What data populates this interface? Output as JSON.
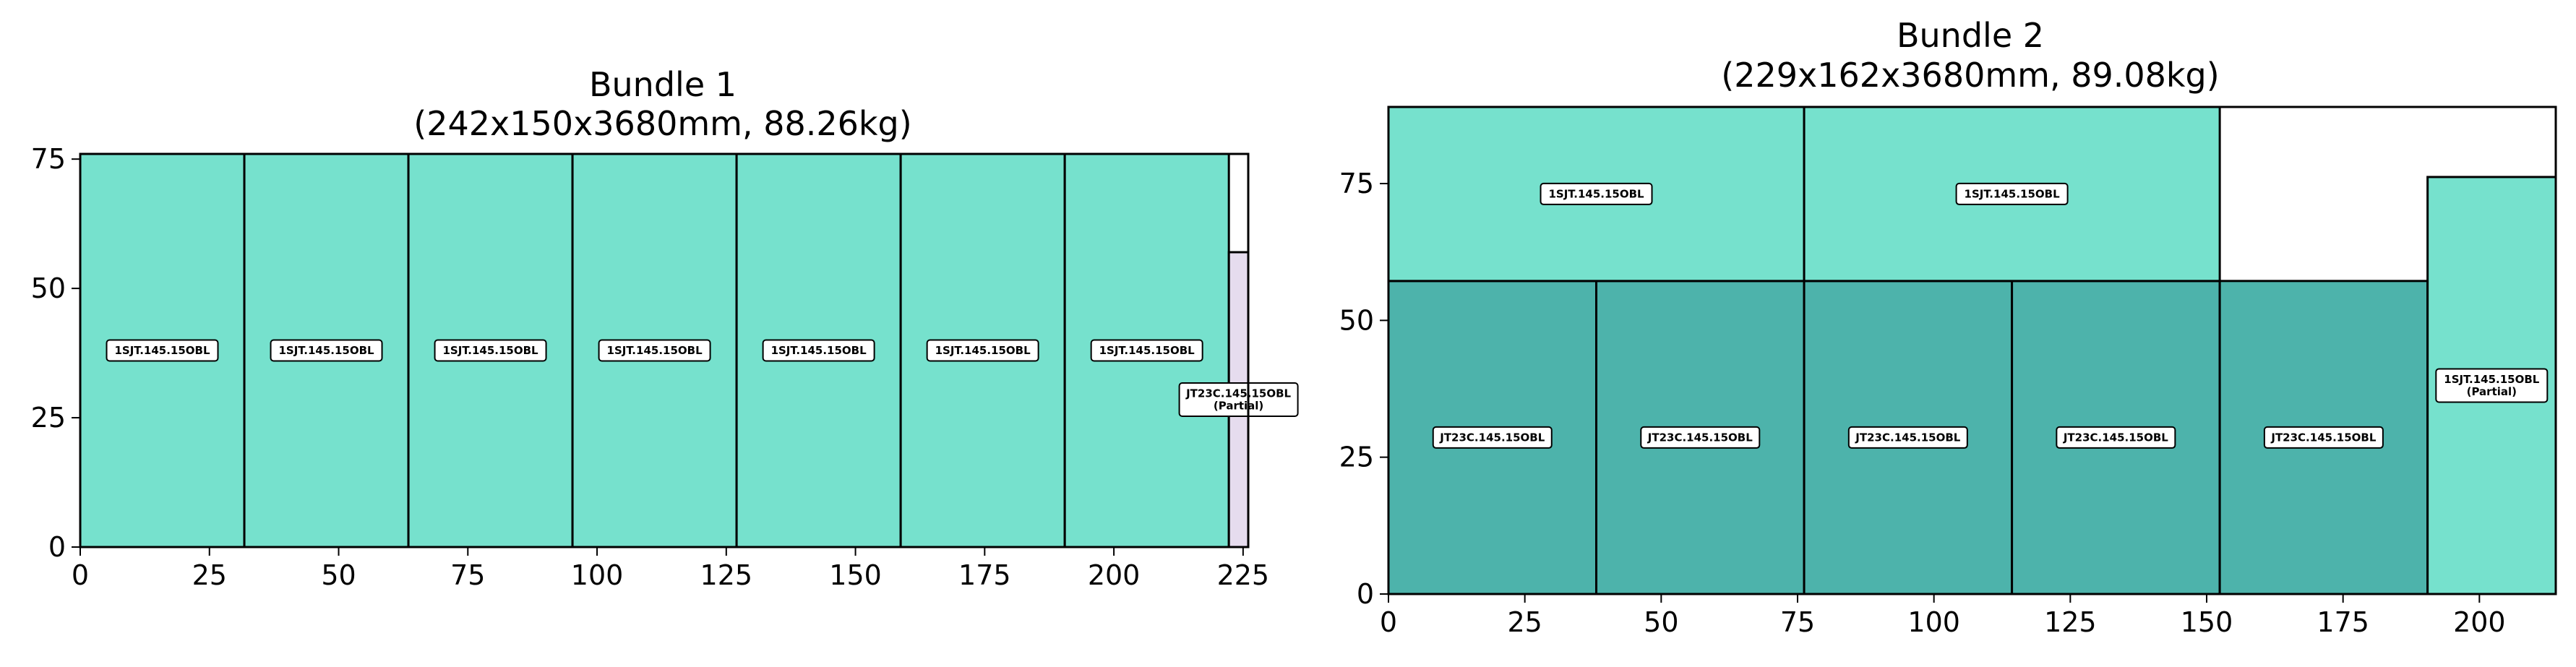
{
  "chart_data": [
    {
      "type": "bar",
      "title": "Bundle 1",
      "subtitle": "(242x150x3680mm, 88.26kg)",
      "xlabel": "",
      "ylabel": "",
      "xlim": [
        0,
        226
      ],
      "ylim": [
        0,
        76
      ],
      "xticks": [
        0,
        25,
        50,
        75,
        100,
        125,
        150,
        175,
        200,
        225
      ],
      "yticks": [
        0,
        25,
        50,
        75
      ],
      "grid": false,
      "outline": {
        "x0": 0,
        "x1": 226,
        "y0": 0,
        "y1": 76
      },
      "rects": [
        {
          "x0": 0,
          "x1": 31.75,
          "y0": 0,
          "y1": 76,
          "label": [
            "1SJT.145.15OBL"
          ],
          "color": "#76e1cd"
        },
        {
          "x0": 31.75,
          "x1": 63.5,
          "y0": 0,
          "y1": 76,
          "label": [
            "1SJT.145.15OBL"
          ],
          "color": "#76e1cd"
        },
        {
          "x0": 63.5,
          "x1": 95.25,
          "y0": 0,
          "y1": 76,
          "label": [
            "1SJT.145.15OBL"
          ],
          "color": "#76e1cd"
        },
        {
          "x0": 95.25,
          "x1": 127,
          "y0": 0,
          "y1": 76,
          "label": [
            "1SJT.145.15OBL"
          ],
          "color": "#76e1cd"
        },
        {
          "x0": 127,
          "x1": 158.75,
          "y0": 0,
          "y1": 76,
          "label": [
            "1SJT.145.15OBL"
          ],
          "color": "#76e1cd"
        },
        {
          "x0": 158.75,
          "x1": 190.5,
          "y0": 0,
          "y1": 76,
          "label": [
            "1SJT.145.15OBL"
          ],
          "color": "#76e1cd"
        },
        {
          "x0": 190.5,
          "x1": 222.25,
          "y0": 0,
          "y1": 76,
          "label": [
            "1SJT.145.15OBL"
          ],
          "color": "#76e1cd"
        },
        {
          "x0": 222.25,
          "x1": 226,
          "y0": 0,
          "y1": 57,
          "label": [
            "JT23C.145.15OBL",
            "(Partial)"
          ],
          "color": "#e6dcee"
        }
      ]
    },
    {
      "type": "bar",
      "title": "Bundle 2",
      "subtitle": "(229x162x3680mm, 89.08kg)",
      "xlabel": "",
      "ylabel": "",
      "xlim": [
        0,
        214
      ],
      "ylim": [
        0,
        89
      ],
      "xticks": [
        0,
        25,
        50,
        75,
        100,
        125,
        150,
        175,
        200
      ],
      "yticks": [
        0,
        25,
        50,
        75
      ],
      "grid": false,
      "outline": {
        "x0": 0,
        "x1": 214,
        "y0": 0,
        "y1": 89
      },
      "rects": [
        {
          "x0": 0,
          "x1": 38.1,
          "y0": 0,
          "y1": 57.2,
          "label": [
            "JT23C.145.15OBL"
          ],
          "color": "#4db3ab"
        },
        {
          "x0": 38.1,
          "x1": 76.2,
          "y0": 0,
          "y1": 57.2,
          "label": [
            "JT23C.145.15OBL"
          ],
          "color": "#4db3ab"
        },
        {
          "x0": 76.2,
          "x1": 114.3,
          "y0": 0,
          "y1": 57.2,
          "label": [
            "JT23C.145.15OBL"
          ],
          "color": "#4db3ab"
        },
        {
          "x0": 114.3,
          "x1": 152.4,
          "y0": 0,
          "y1": 57.2,
          "label": [
            "JT23C.145.15OBL"
          ],
          "color": "#4db3ab"
        },
        {
          "x0": 152.4,
          "x1": 190.5,
          "y0": 0,
          "y1": 57.2,
          "label": [
            "JT23C.145.15OBL"
          ],
          "color": "#4db3ab"
        },
        {
          "x0": 0,
          "x1": 76.2,
          "y0": 57.2,
          "y1": 89,
          "label": [
            "1SJT.145.15OBL"
          ],
          "color": "#76e1cd"
        },
        {
          "x0": 76.2,
          "x1": 152.4,
          "y0": 57.2,
          "y1": 89,
          "label": [
            "1SJT.145.15OBL"
          ],
          "color": "#76e1cd"
        },
        {
          "x0": 190.5,
          "x1": 214,
          "y0": 0,
          "y1": 76.2,
          "label": [
            "1SJT.145.15OBL",
            "(Partial)"
          ],
          "color": "#76e1cd"
        }
      ]
    }
  ]
}
